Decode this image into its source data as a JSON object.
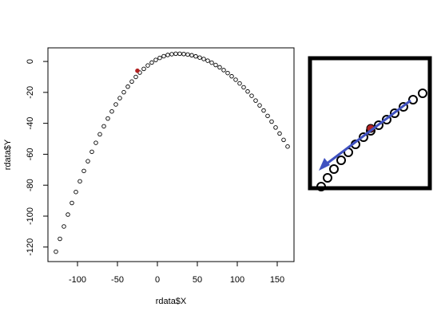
{
  "chart_data": {
    "type": "scatter",
    "x_label": "rdata$X",
    "y_label": "rdata$Y",
    "x": [
      -127,
      -122,
      -117,
      -112,
      -107,
      -102,
      -97,
      -92,
      -87,
      -82,
      -77,
      -72,
      -67,
      -62,
      -57,
      -52,
      -47,
      -42,
      -37,
      -32,
      -27,
      -22,
      -17,
      -12,
      -7,
      -2,
      3,
      8,
      13,
      18,
      23,
      28,
      33,
      38,
      43,
      48,
      53,
      58,
      63,
      68,
      73,
      78,
      83,
      88,
      93,
      98,
      103,
      108,
      113,
      118,
      123,
      128,
      133,
      138,
      143,
      148,
      153,
      158,
      163
    ],
    "values": [
      -123.0,
      -114.7,
      -106.7,
      -99.0,
      -91.5,
      -84.4,
      -77.5,
      -70.8,
      -64.5,
      -58.4,
      -52.6,
      -47.1,
      -41.9,
      -36.9,
      -32.3,
      -27.8,
      -23.7,
      -19.9,
      -16.3,
      -13.0,
      -10.0,
      -7.2,
      -4.8,
      -2.6,
      -0.7,
      1.0,
      2.3,
      3.4,
      4.2,
      4.7,
      5.0,
      5.0,
      4.8,
      4.5,
      4.0,
      3.3,
      2.5,
      1.6,
      0.5,
      -0.8,
      -2.3,
      -3.8,
      -5.6,
      -7.5,
      -9.6,
      -11.8,
      -14.2,
      -16.7,
      -19.4,
      -22.2,
      -25.3,
      -28.4,
      -31.7,
      -35.2,
      -38.9,
      -42.7,
      -46.6,
      -50.7,
      -55.0
    ],
    "color": "#000000",
    "highlight": {
      "x": -25,
      "y": -6,
      "color": "#b22222"
    },
    "xlim": [
      -137,
      171
    ],
    "ylim": [
      -129.4,
      8.8
    ],
    "xticks": [
      -100,
      -50,
      0,
      50,
      100,
      150
    ],
    "yticks": [
      0,
      -20,
      -40,
      -60,
      -80,
      -100,
      -120
    ]
  }
}
